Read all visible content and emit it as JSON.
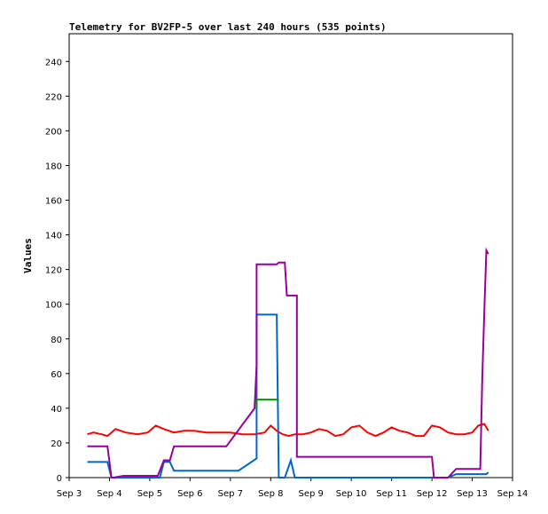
{
  "chart_data": {
    "type": "line",
    "title": "Telemetry for BV2FP-5 over last 240 hours (535 points)",
    "xlabel": "",
    "ylabel": "Values",
    "ylim": [
      0,
      256
    ],
    "xlim": [
      0,
      11
    ],
    "y_ticks": [
      0,
      20,
      40,
      60,
      80,
      100,
      120,
      140,
      160,
      180,
      200,
      220,
      240
    ],
    "x_ticks": [
      {
        "x": 0,
        "label": "Sep 3"
      },
      {
        "x": 1,
        "label": "Sep 4"
      },
      {
        "x": 2,
        "label": "Sep 5"
      },
      {
        "x": 3,
        "label": "Sep 6"
      },
      {
        "x": 4,
        "label": "Sep 7"
      },
      {
        "x": 5,
        "label": "Sep 8"
      },
      {
        "x": 6,
        "label": "Sep 9"
      },
      {
        "x": 7,
        "label": "Sep 10"
      },
      {
        "x": 8,
        "label": "Sep 11"
      },
      {
        "x": 9,
        "label": "Sep 12"
      },
      {
        "x": 10,
        "label": "Sep 13"
      },
      {
        "x": 11,
        "label": "Sep 14"
      }
    ],
    "grid": false,
    "series": [
      {
        "color": "#ff0000",
        "x": [
          0.45,
          0.6,
          0.8,
          0.95,
          1.15,
          1.4,
          1.7,
          1.95,
          2.15,
          2.35,
          2.6,
          2.85,
          3.1,
          3.4,
          3.7,
          4.0,
          4.3,
          4.6,
          4.85,
          5.0,
          5.15,
          5.3,
          5.45,
          5.6,
          5.8,
          6.0,
          6.2,
          6.4,
          6.6,
          6.8,
          7.0,
          7.2,
          7.4,
          7.6,
          7.8,
          8.0,
          8.2,
          8.4,
          8.6,
          8.8,
          9.0,
          9.2,
          9.4,
          9.6,
          9.8,
          10.0,
          10.15,
          10.3,
          10.4
        ],
        "values": [
          25,
          26,
          25,
          24,
          28,
          26,
          25,
          26,
          30,
          28,
          26,
          27,
          27,
          26,
          26,
          26,
          25,
          25,
          26,
          30,
          27,
          25,
          24,
          25,
          25,
          26,
          28,
          27,
          24,
          25,
          29,
          30,
          26,
          24,
          26,
          29,
          27,
          26,
          24,
          24,
          30,
          29,
          26,
          25,
          25,
          26,
          30,
          31,
          27
        ]
      },
      {
        "color": "#0066cc",
        "x": [
          0.45,
          0.95,
          1.05,
          1.1,
          1.4,
          2.25,
          2.35,
          2.5,
          2.6,
          4.2,
          4.65,
          4.65,
          5.15,
          5.2,
          5.35,
          5.5,
          5.6,
          6.0,
          9.0,
          9.4,
          9.6,
          10.0,
          10.2,
          10.35,
          10.4
        ],
        "values": [
          9,
          9,
          0,
          0,
          0,
          0,
          9,
          9,
          4,
          4,
          11,
          94,
          94,
          0,
          0,
          10,
          0,
          0,
          0,
          0,
          2,
          2,
          2,
          2,
          3
        ]
      },
      {
        "color": "#009900",
        "x": [
          4.65,
          4.65,
          4.72,
          5.2
        ],
        "values": [
          40,
          45,
          45,
          45
        ]
      },
      {
        "color": "#990099",
        "x": [
          0.45,
          0.95,
          1.05,
          1.1,
          1.35,
          1.45,
          2.2,
          2.35,
          2.5,
          2.6,
          3.9,
          4.6,
          4.65,
          4.65,
          5.15,
          5.2,
          5.35,
          5.4,
          5.6,
          5.65,
          5.65,
          9.0,
          9.05,
          9.4,
          9.6,
          10.2,
          10.25,
          10.3,
          10.35,
          10.4
        ],
        "values": [
          18,
          18,
          0,
          0,
          1,
          1,
          1,
          10,
          10,
          18,
          18,
          40,
          65,
          123,
          123,
          124,
          124,
          105,
          105,
          105,
          12,
          12,
          0,
          0,
          5,
          5,
          58,
          96,
          131,
          129
        ]
      }
    ]
  }
}
